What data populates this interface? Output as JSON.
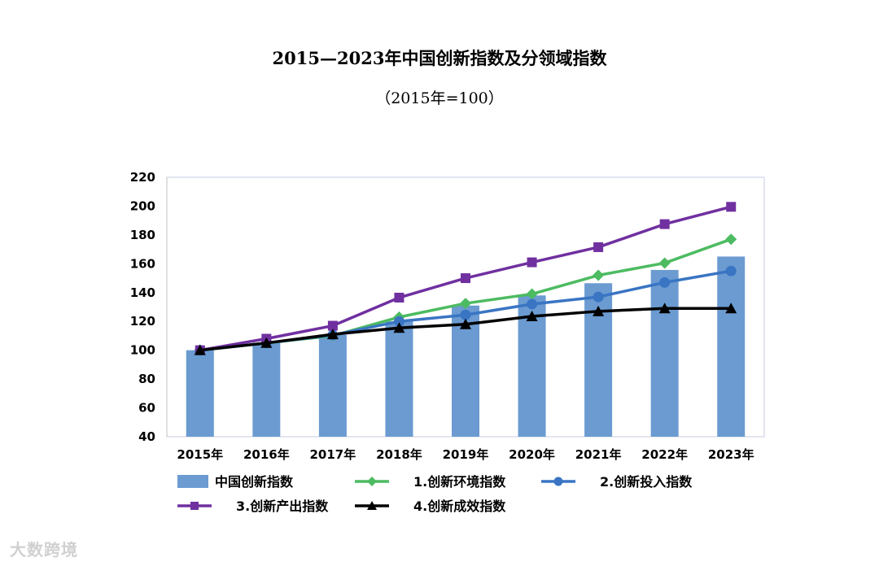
{
  "watermark": "大数跨境",
  "chart_data": {
    "type": "bar+line",
    "title": "2015—2023年中国创新指数及分领域指数",
    "subtitle": "（2015年=100）",
    "categories": [
      "2015年",
      "2016年",
      "2017年",
      "2018年",
      "2019年",
      "2020年",
      "2021年",
      "2022年",
      "2023年"
    ],
    "ylim": [
      40,
      220
    ],
    "yticks": [
      40,
      60,
      80,
      100,
      120,
      140,
      160,
      180,
      200,
      220
    ],
    "xlabel": "",
    "ylabel": "",
    "grid": false,
    "legend_position": "bottom",
    "bar_series": {
      "name": "中国创新指数",
      "color": "#6b9bd1",
      "values": [
        100,
        105.2,
        110.7,
        120,
        131,
        138,
        146.5,
        155.7,
        165
      ]
    },
    "series": [
      {
        "name": "1.创新环境指数",
        "color": "#4dbb61",
        "marker": "diamond",
        "values": [
          100,
          105,
          110,
          123,
          132.5,
          139,
          152,
          160.5,
          177
        ]
      },
      {
        "name": "2.创新投入指数",
        "color": "#3a75c4",
        "marker": "circle",
        "values": [
          100,
          105,
          110.5,
          120,
          124.5,
          132,
          137,
          147,
          155
        ]
      },
      {
        "name": "3.创新产出指数",
        "color": "#7030a0",
        "marker": "square",
        "values": [
          100,
          108,
          117,
          136.5,
          150,
          161,
          171.5,
          187.5,
          199.5
        ]
      },
      {
        "name": "4.创新成效指数",
        "color": "#000000",
        "marker": "triangle",
        "values": [
          100,
          105,
          111,
          115.5,
          118,
          123.5,
          127,
          129,
          129
        ]
      }
    ]
  }
}
